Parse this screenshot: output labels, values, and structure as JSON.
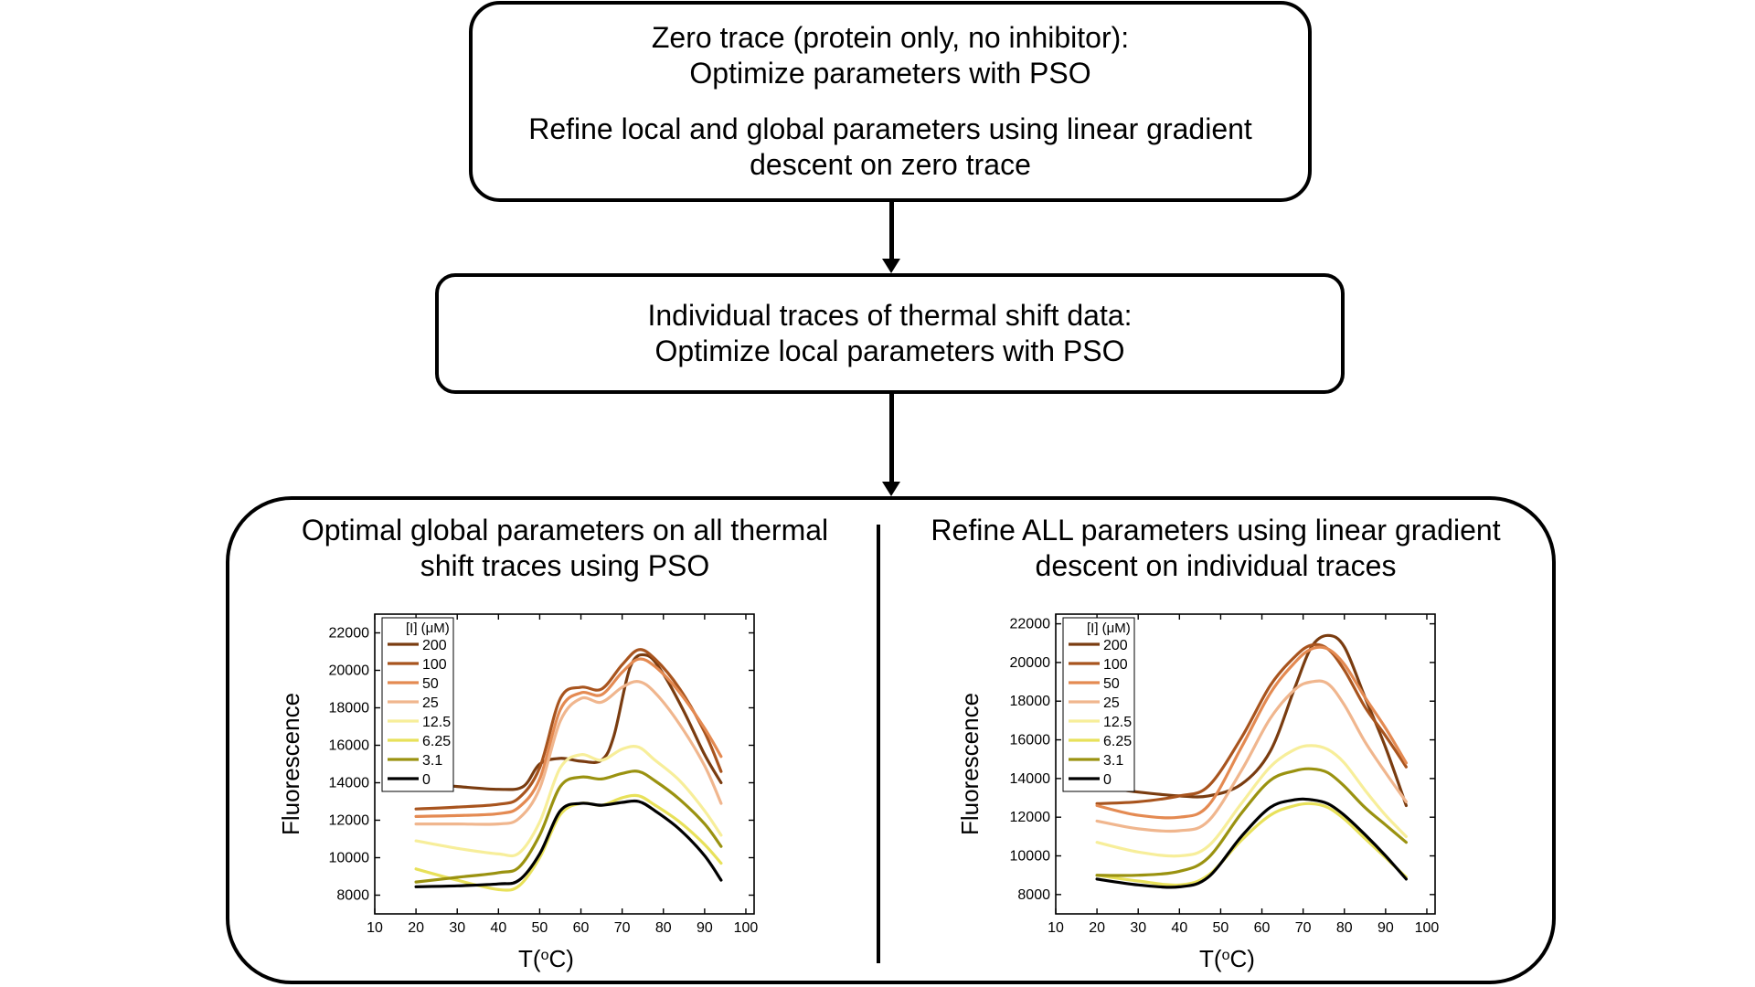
{
  "top_box": {
    "line1": "Zero trace (protein only, no inhibitor):\nOptimize parameters with PSO",
    "line2": "Refine local and global parameters using linear gradient\ndescent on zero trace"
  },
  "middle_box": {
    "text": "Individual traces of thermal shift data:\nOptimize local parameters with PSO"
  },
  "bottom_box": {
    "left_title": "Optimal global parameters on all thermal\nshift traces using PSO",
    "right_title": "Refine ALL parameters using linear gradient\ndescent on individual traces"
  },
  "legend_title": "[I] (μM)",
  "chart_data": [
    {
      "type": "line",
      "xlabel": "T(oC)",
      "ylabel": "Fluorescence",
      "xlim": [
        10,
        102
      ],
      "ylim": [
        7000,
        23000
      ],
      "xticks": [
        10,
        20,
        30,
        40,
        50,
        60,
        70,
        80,
        90,
        100
      ],
      "yticks": [
        8000,
        10000,
        12000,
        14000,
        16000,
        18000,
        20000,
        22000
      ],
      "legend_title": "[I] (μM)",
      "legend_position": "top-left",
      "series": [
        {
          "name": "200",
          "color": "#7a3c10",
          "x": [
            20,
            30,
            40,
            46,
            50,
            55,
            60,
            65,
            68,
            72,
            76,
            80,
            85,
            90,
            94
          ],
          "y": [
            14000,
            13800,
            13650,
            13800,
            15000,
            15300,
            15150,
            15200,
            16500,
            20200,
            20800,
            19800,
            17800,
            15500,
            14000
          ]
        },
        {
          "name": "100",
          "color": "#a8541e",
          "x": [
            20,
            30,
            40,
            45,
            50,
            55,
            60,
            65,
            70,
            74,
            78,
            84,
            90,
            94
          ],
          "y": [
            12600,
            12700,
            12850,
            13200,
            14800,
            18500,
            19100,
            19000,
            20300,
            21100,
            20600,
            19000,
            16700,
            14600
          ]
        },
        {
          "name": "50",
          "color": "#e48a52",
          "x": [
            20,
            30,
            40,
            45,
            50,
            55,
            60,
            65,
            70,
            74,
            78,
            84,
            90,
            94
          ],
          "y": [
            12200,
            12250,
            12350,
            12700,
            14200,
            17900,
            18800,
            18700,
            19900,
            20600,
            20200,
            18800,
            16900,
            15400
          ]
        },
        {
          "name": "25",
          "color": "#f0b68e",
          "x": [
            20,
            30,
            40,
            45,
            50,
            55,
            60,
            65,
            70,
            74,
            78,
            84,
            90,
            94
          ],
          "y": [
            11800,
            11800,
            11800,
            12100,
            13700,
            17300,
            18500,
            18300,
            19100,
            19400,
            18800,
            17100,
            14900,
            12900
          ]
        },
        {
          "name": "12.5",
          "color": "#f7ee9a",
          "x": [
            20,
            30,
            40,
            45,
            50,
            55,
            60,
            65,
            70,
            74,
            78,
            84,
            90,
            94
          ],
          "y": [
            10900,
            10500,
            10200,
            10250,
            11900,
            14800,
            15500,
            15200,
            15800,
            15900,
            15200,
            14100,
            12500,
            11200
          ]
        },
        {
          "name": "6.25",
          "color": "#e8e15a",
          "x": [
            20,
            30,
            40,
            45,
            50,
            55,
            60,
            65,
            70,
            74,
            78,
            84,
            90,
            94
          ],
          "y": [
            9400,
            8800,
            8300,
            8500,
            10000,
            12300,
            12900,
            12800,
            13200,
            13300,
            12800,
            11900,
            10700,
            9700
          ]
        },
        {
          "name": "3.1",
          "color": "#9a9210",
          "x": [
            20,
            30,
            40,
            45,
            50,
            55,
            60,
            65,
            70,
            74,
            78,
            84,
            90,
            94
          ],
          "y": [
            8700,
            8950,
            9200,
            9500,
            11200,
            13800,
            14300,
            14200,
            14500,
            14600,
            14100,
            13100,
            11800,
            10600
          ]
        },
        {
          "name": "0",
          "color": "#000000",
          "x": [
            20,
            30,
            40,
            45,
            50,
            55,
            60,
            65,
            70,
            74,
            78,
            84,
            90,
            94
          ],
          "y": [
            8450,
            8500,
            8600,
            8800,
            10200,
            12500,
            12900,
            12800,
            12950,
            13000,
            12500,
            11500,
            10100,
            8800
          ]
        }
      ]
    },
    {
      "type": "line",
      "xlabel": "T(oC)",
      "ylabel": "Fluorescence",
      "xlim": [
        10,
        102
      ],
      "ylim": [
        7000,
        22500
      ],
      "xticks": [
        10,
        20,
        30,
        40,
        50,
        60,
        70,
        80,
        90,
        100
      ],
      "yticks": [
        8000,
        10000,
        12000,
        14000,
        16000,
        18000,
        20000,
        22000
      ],
      "legend_title": "[I] (μM)",
      "legend_position": "top-left",
      "series": [
        {
          "name": "200",
          "color": "#7a3c10",
          "x": [
            20,
            30,
            40,
            47,
            55,
            62,
            68,
            72,
            76,
            80,
            85,
            90,
            95
          ],
          "y": [
            13600,
            13300,
            13100,
            13100,
            13700,
            15400,
            18700,
            20800,
            21400,
            20800,
            18200,
            15600,
            12600
          ]
        },
        {
          "name": "100",
          "color": "#a8541e",
          "x": [
            20,
            30,
            40,
            47,
            55,
            62,
            68,
            72,
            76,
            80,
            85,
            90,
            95
          ],
          "y": [
            12700,
            12800,
            13100,
            13600,
            16100,
            18800,
            20300,
            20900,
            20700,
            19600,
            17700,
            16200,
            14600
          ]
        },
        {
          "name": "50",
          "color": "#e48a52",
          "x": [
            20,
            30,
            40,
            47,
            55,
            62,
            68,
            72,
            76,
            80,
            85,
            90,
            95
          ],
          "y": [
            12600,
            12100,
            12000,
            12600,
            15600,
            18400,
            20000,
            20700,
            20700,
            19900,
            18200,
            16600,
            14800
          ]
        },
        {
          "name": "25",
          "color": "#f0b68e",
          "x": [
            20,
            30,
            40,
            47,
            55,
            62,
            68,
            72,
            76,
            80,
            85,
            90,
            95
          ],
          "y": [
            11800,
            11400,
            11300,
            11800,
            14400,
            17100,
            18600,
            19000,
            18900,
            17800,
            15900,
            14300,
            12800
          ]
        },
        {
          "name": "12.5",
          "color": "#f7ee9a",
          "x": [
            20,
            30,
            40,
            47,
            55,
            62,
            68,
            72,
            76,
            80,
            85,
            90,
            95
          ],
          "y": [
            10700,
            10200,
            10000,
            10500,
            12700,
            14600,
            15500,
            15700,
            15500,
            14800,
            13400,
            12100,
            11000
          ]
        },
        {
          "name": "6.25",
          "color": "#e8e15a",
          "x": [
            20,
            30,
            40,
            47,
            55,
            62,
            68,
            72,
            76,
            80,
            85,
            90,
            95
          ],
          "y": [
            9000,
            8700,
            8500,
            9000,
            10800,
            12100,
            12600,
            12700,
            12500,
            11900,
            10900,
            9900,
            8900
          ]
        },
        {
          "name": "3.1",
          "color": "#9a9210",
          "x": [
            20,
            30,
            40,
            47,
            55,
            62,
            68,
            72,
            76,
            80,
            85,
            90,
            95
          ],
          "y": [
            9000,
            9000,
            9200,
            9900,
            12200,
            13900,
            14400,
            14500,
            14300,
            13600,
            12500,
            11600,
            10700
          ]
        },
        {
          "name": "0",
          "color": "#000000",
          "x": [
            20,
            30,
            40,
            47,
            55,
            62,
            68,
            72,
            76,
            80,
            85,
            90,
            95
          ],
          "y": [
            8800,
            8500,
            8400,
            8900,
            11000,
            12500,
            12900,
            12900,
            12700,
            12100,
            11100,
            10000,
            8800
          ]
        }
      ]
    }
  ]
}
